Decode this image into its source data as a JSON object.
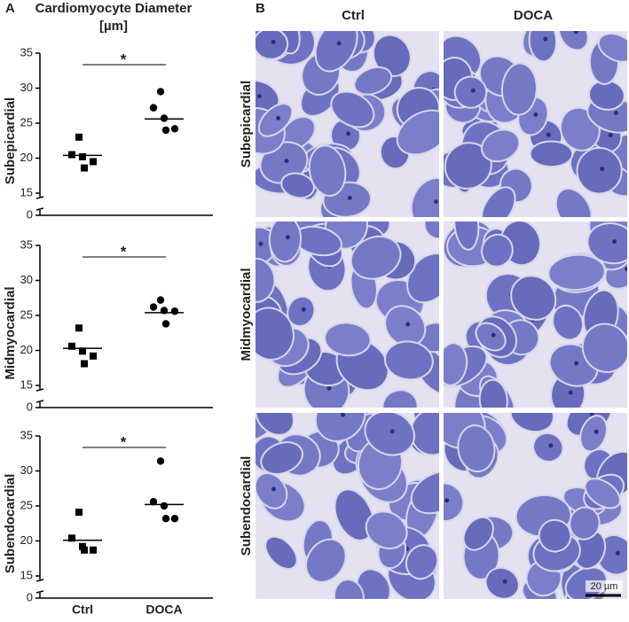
{
  "figure": {
    "panel_a_label": "A",
    "title_lines": [
      "Cardiomyocyte Diameter",
      "[µm]"
    ],
    "panel_b_label": "B",
    "columns": [
      "Ctrl",
      "DOCA"
    ],
    "rows": [
      "Subepicardial",
      "Midmyocardial",
      "Subendocardial"
    ],
    "scale_bar": "20 µm"
  },
  "chart_data": [
    {
      "type": "dotplot",
      "ylabel": "Subepicardial",
      "ylim": [
        0,
        35
      ],
      "ybreak": [
        0,
        15
      ],
      "yticks": [
        0,
        15,
        20,
        25,
        30,
        35
      ],
      "annotation": "*",
      "groups": [
        {
          "marker": "square",
          "color": "#000000",
          "values": [
            23.0,
            20.5,
            20.2,
            19.5,
            18.6
          ],
          "median": 20.4
        },
        {
          "marker": "circle",
          "color": "#000000",
          "values": [
            29.5,
            27.2,
            25.7,
            24.2,
            24.0
          ],
          "median": 25.6
        }
      ]
    },
    {
      "type": "dotplot",
      "ylabel": "Midmyocardial",
      "ylim": [
        0,
        35
      ],
      "ybreak": [
        0,
        15
      ],
      "yticks": [
        0,
        15,
        20,
        25,
        30,
        35
      ],
      "annotation": "*",
      "groups": [
        {
          "marker": "square",
          "color": "#000000",
          "values": [
            23.2,
            20.6,
            19.9,
            19.2,
            18.1
          ],
          "median": 20.3
        },
        {
          "marker": "circle",
          "color": "#000000",
          "values": [
            27.2,
            26.2,
            25.7,
            25.6,
            23.8
          ],
          "median": 25.4
        }
      ]
    },
    {
      "type": "dotplot",
      "ylabel": "Subendocardial",
      "ylim": [
        0,
        35
      ],
      "ybreak": [
        0,
        15
      ],
      "yticks": [
        0,
        15,
        20,
        25,
        30,
        35
      ],
      "annotation": "*",
      "categories": [
        "Ctrl",
        "DOCA"
      ],
      "groups": [
        {
          "marker": "square",
          "color": "#000000",
          "values": [
            24.1,
            20.4,
            19.2,
            18.7,
            18.7
          ],
          "median": 20.1
        },
        {
          "marker": "circle",
          "color": "#000000",
          "values": [
            31.4,
            25.6,
            25.0,
            23.2,
            23.2
          ],
          "median": 25.2
        }
      ]
    }
  ]
}
